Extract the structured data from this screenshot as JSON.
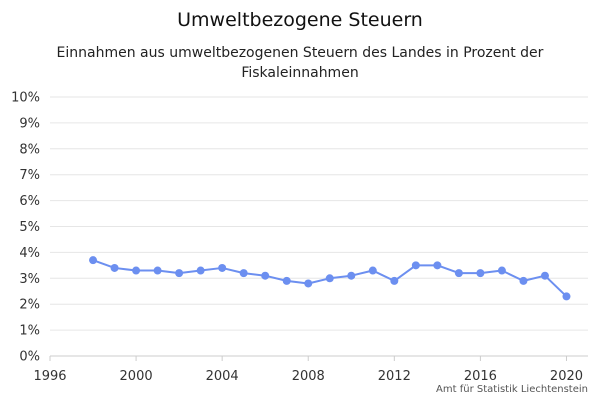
{
  "chart_data": {
    "type": "line",
    "title": "Umweltbezogene Steuern",
    "subtitle_lines": [
      "Einnahmen aus umweltbezogenen Steuern des Landes in Prozent der",
      "Fiskaleinnahmen"
    ],
    "xlabel": "",
    "ylabel": "",
    "xlim": [
      1996,
      2021
    ],
    "ylim": [
      0,
      10
    ],
    "x_ticks": [
      1996,
      2000,
      2004,
      2008,
      2012,
      2016,
      2020
    ],
    "y_ticks": [
      0,
      1,
      2,
      3,
      4,
      5,
      6,
      7,
      8,
      9,
      10
    ],
    "y_tick_labels": [
      "0%",
      "1%",
      "2%",
      "3%",
      "4%",
      "5%",
      "6%",
      "7%",
      "8%",
      "9%",
      "10%"
    ],
    "grid": true,
    "legend": false,
    "series": [
      {
        "color": "#6c8ff0",
        "x": [
          1998,
          1999,
          2000,
          2001,
          2002,
          2003,
          2004,
          2005,
          2006,
          2007,
          2008,
          2009,
          2010,
          2011,
          2012,
          2013,
          2014,
          2015,
          2016,
          2017,
          2018,
          2019,
          2020
        ],
        "y": [
          3.7,
          3.4,
          3.3,
          3.3,
          3.2,
          3.3,
          3.4,
          3.2,
          3.1,
          2.9,
          2.8,
          3.0,
          3.1,
          3.3,
          2.9,
          3.5,
          3.5,
          3.2,
          3.2,
          3.3,
          2.9,
          3.1,
          2.3
        ]
      }
    ]
  },
  "credit": "Amt für Statistik Liechtenstein"
}
